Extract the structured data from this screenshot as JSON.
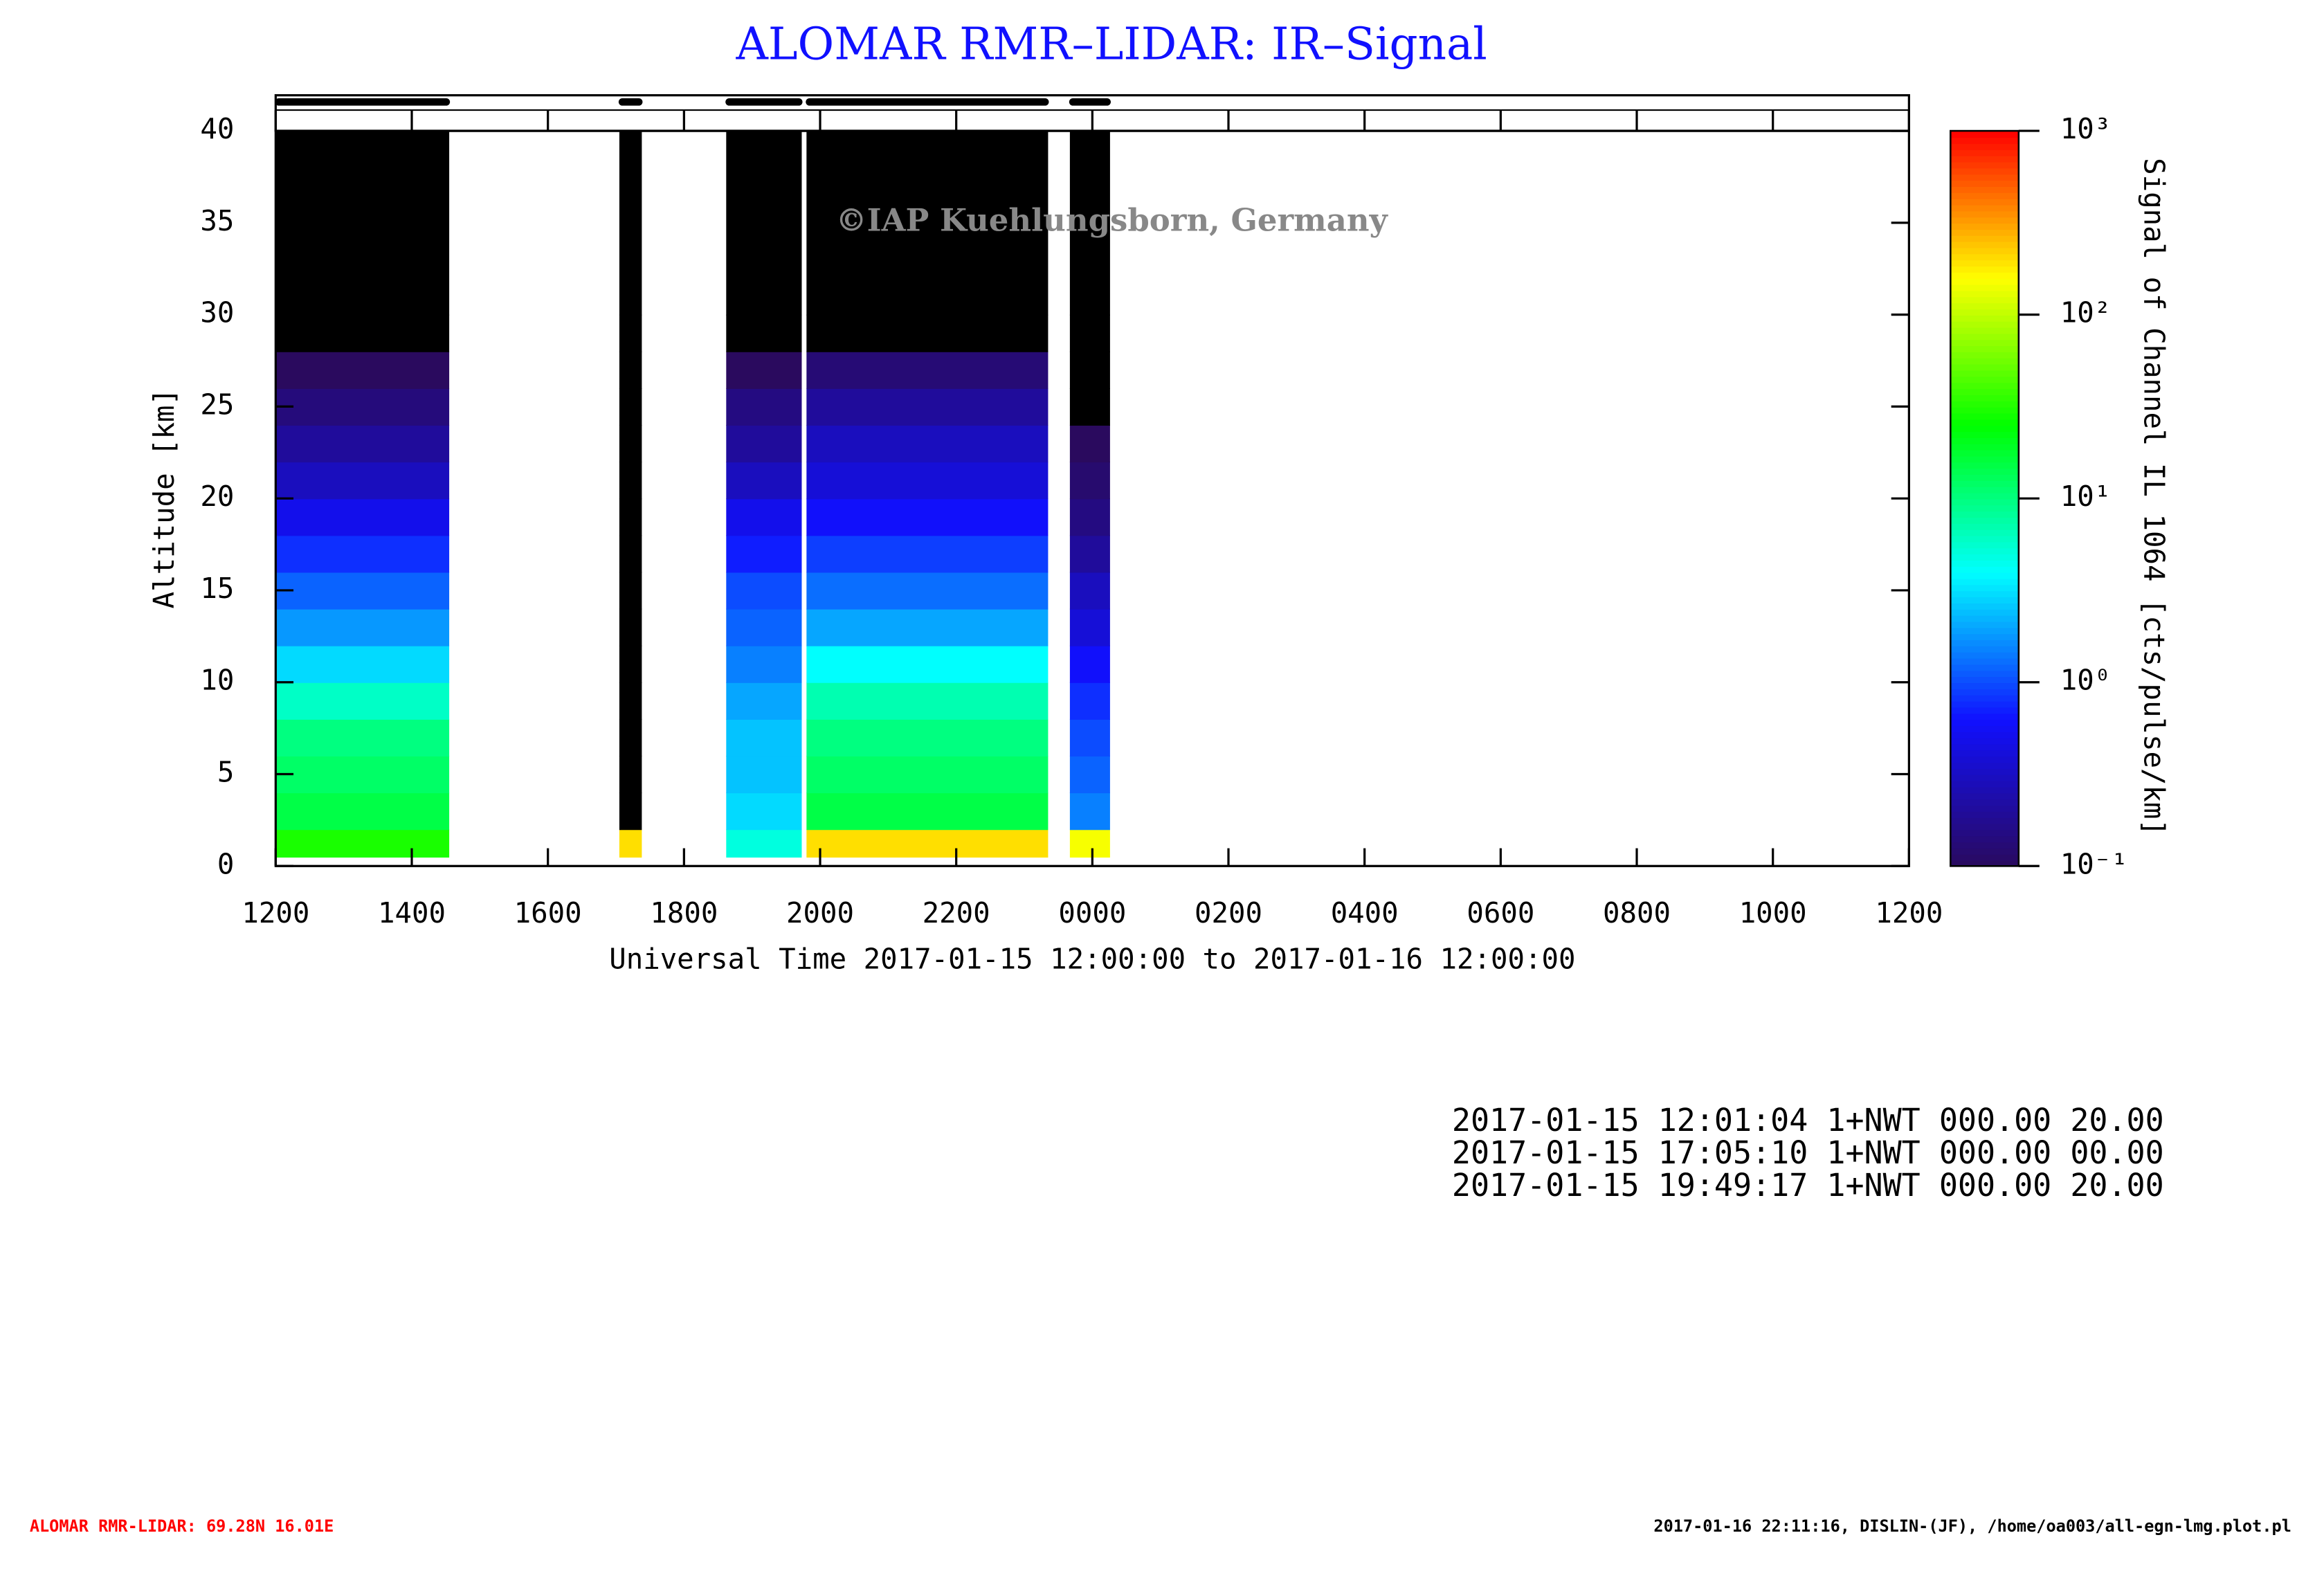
{
  "chart_data": {
    "type": "heatmap",
    "title": "ALOMAR RMR–LIDAR: IR–Signal",
    "watermark": "©IAP Kuehlungsborn, Germany",
    "x_label": "Universal Time 2017-01-15 12:00:00 to 2017-01-16 12:00:00",
    "y_label": "Altitude [km]",
    "colorbar_label": "Signal of Channel IL 1064 [cts/pulse/km]",
    "xlim": [
      0,
      24
    ],
    "xticks": [
      {
        "value": 0,
        "label": "1200"
      },
      {
        "value": 2,
        "label": "1400"
      },
      {
        "value": 4,
        "label": "1600"
      },
      {
        "value": 6,
        "label": "1800"
      },
      {
        "value": 8,
        "label": "2000"
      },
      {
        "value": 10,
        "label": "2200"
      },
      {
        "value": 12,
        "label": "0000"
      },
      {
        "value": 14,
        "label": "0200"
      },
      {
        "value": 16,
        "label": "0400"
      },
      {
        "value": 18,
        "label": "0600"
      },
      {
        "value": 20,
        "label": "0800"
      },
      {
        "value": 22,
        "label": "1000"
      },
      {
        "value": 24,
        "label": "1200"
      }
    ],
    "ylim": [
      0,
      40
    ],
    "yticks": [
      0,
      5,
      10,
      15,
      20,
      25,
      30,
      35,
      40
    ],
    "clim": [
      0.1,
      1000
    ],
    "log_color_scale": true,
    "cticks": [
      {
        "value": 0.1,
        "label": "10⁻¹"
      },
      {
        "value": 1,
        "label": "10⁰"
      },
      {
        "value": 10,
        "label": "10¹"
      },
      {
        "value": 100,
        "label": "10²"
      },
      {
        "value": 1000,
        "label": "10³"
      }
    ],
    "colormap": [
      "#2a0a5e",
      "#1010ff",
      "#00ffff",
      "#00ff00",
      "#ffff00",
      "#ff0000"
    ],
    "below_color": "#000000",
    "altitude_bins": [
      0,
      0.5,
      2,
      4,
      6,
      8,
      10,
      12,
      14,
      16,
      18,
      20,
      22,
      24,
      26,
      28,
      30,
      40
    ],
    "segments": [
      {
        "start": 0,
        "end": 2.55,
        "signal": [
          null,
          30,
          15,
          12,
          10,
          6,
          3,
          1.8,
          1.2,
          0.8,
          0.5,
          0.3,
          0.2,
          0.14,
          0.1,
          0.05,
          0.02
        ]
      },
      {
        "start": 5.05,
        "end": 5.38,
        "signal": [
          null,
          200,
          0.05,
          0.05,
          0.05,
          0.05,
          0.05,
          0.05,
          0.05,
          0.05,
          0.05,
          0.05,
          0.05,
          0.05,
          0.05,
          0.05,
          0.02
        ]
      },
      {
        "start": 6.62,
        "end": 7.73,
        "signal": [
          null,
          5,
          3,
          2.5,
          2.5,
          2,
          1.5,
          1.2,
          1,
          0.7,
          0.5,
          0.3,
          0.2,
          0.15,
          0.1,
          0.05,
          0.02
        ]
      },
      {
        "start": 7.8,
        "end": 11.35,
        "signal": [
          null,
          200,
          15,
          12,
          10,
          7,
          4,
          2,
          1.3,
          0.9,
          0.6,
          0.4,
          0.3,
          0.2,
          0.13,
          0.08,
          0.02
        ]
      },
      {
        "start": 11.67,
        "end": 12.26,
        "signal": [
          null,
          150,
          1.5,
          1.2,
          1,
          0.8,
          0.6,
          0.4,
          0.3,
          0.2,
          0.15,
          0.12,
          0.1,
          0.08,
          0.05,
          0.03,
          0.02
        ]
      }
    ],
    "log_lines": [
      "2017-01-15 12:01:04 1+NWT 000.00 20.00",
      "2017-01-15 17:05:10 1+NWT 000.00 00.00",
      "2017-01-15 19:49:17 1+NWT 000.00 20.00"
    ],
    "footer_left": "ALOMAR RMR-LIDAR: 69.28N 16.01E",
    "footer_right": "2017-01-16 22:11:16, DISLIN-(JF), /home/oa003/all-egn-lmg.plot.pl"
  }
}
